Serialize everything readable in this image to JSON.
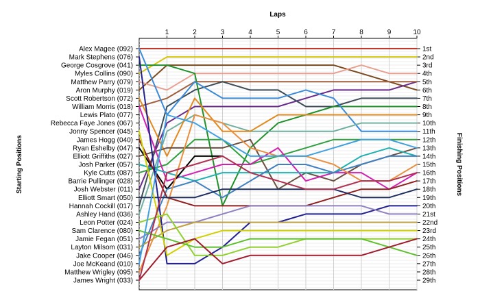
{
  "chart_data": {
    "type": "line",
    "title": "Laps",
    "ylabel_left": "Starting Positions",
    "ylabel_right": "Finishing Positions",
    "x": [
      0,
      1,
      2,
      3,
      4,
      5,
      6,
      7,
      8,
      9,
      10
    ],
    "x_tick_labels": [
      "1",
      "2",
      "3",
      "4",
      "5",
      "6",
      "7",
      "8",
      "9",
      "10"
    ],
    "xlim": [
      0,
      10
    ],
    "ylim": [
      1,
      29
    ],
    "y_inverted": true,
    "grid": {
      "vertical": true,
      "horizontal_minor": true
    },
    "left_labels": [
      "Alex Magee (092)",
      "Mark Stephens (076)",
      "George Cosgrove (041)",
      "Myles Collins (090)",
      "Matthew Parry (079)",
      "Aron Murphy (019)",
      "Scott Robertson (072)",
      "William Morris (018)",
      "Lewis Plato (077)",
      "Rebecca Faye Jones (067)",
      "Jonny Spencer (045)",
      "James Hogg (040)",
      "Ryan Eshelby (047)",
      "Elliott Griffiths (027)",
      "Josh Parker (057)",
      "Kyle Cutts (087)",
      "Barrie Pullinger (028)",
      "Josh Webster (011)",
      "Elliott Smart (050)",
      "Hannah Cockill (017)",
      "Ashley Hand (036)",
      "Leon Potter (024)",
      "Sam Clarence (080)",
      "Jamie Fegan (051)",
      "Layton Milsom (031)",
      "Jake Cooper (046)",
      "Joe McKeand (010)",
      "Matthew Wrigley (095)",
      "James Wright (033)"
    ],
    "right_labels": [
      "1st",
      "2nd",
      "3rd",
      "4th",
      "5th",
      "6th",
      "7th",
      "8th",
      "9th",
      "10th",
      "11th",
      "12th",
      "13th",
      "14th",
      "15th",
      "16th",
      "17th",
      "18th",
      "19th",
      "20th",
      "21st",
      "22nd",
      "23rd",
      "24th",
      "25th",
      "26th",
      "27th",
      "28th",
      "29th"
    ],
    "series": [
      {
        "color": "#c0392b",
        "values": [
          1,
          1,
          1,
          1,
          1,
          1,
          1,
          1,
          1,
          1,
          1
        ]
      },
      {
        "color": "#d4c60a",
        "values": [
          4,
          2,
          2,
          2,
          2,
          2,
          2,
          2,
          2,
          2,
          2
        ]
      },
      {
        "color": "#7a4a1e",
        "values": [
          6,
          3,
          3,
          3,
          3,
          3,
          3,
          3,
          4,
          5,
          6
        ]
      },
      {
        "color": "#e8a090",
        "values": [
          5,
          6,
          4,
          4,
          4,
          4,
          4,
          4,
          3,
          4,
          4
        ]
      },
      {
        "color": "#6a2a8a",
        "values": [
          18,
          10,
          8,
          8,
          8,
          8,
          7,
          6,
          6,
          6,
          5
        ]
      },
      {
        "color": "#a06040",
        "values": [
          8,
          7,
          5,
          5,
          5,
          5,
          5,
          5,
          5,
          5,
          5
        ]
      },
      {
        "color": "#3c4c58",
        "values": [
          20,
          8,
          6,
          5,
          6,
          6,
          8,
          8,
          7,
          7,
          7
        ]
      },
      {
        "color": "#20902a",
        "values": [
          3,
          3,
          4,
          20,
          13,
          10,
          9,
          8,
          8,
          8,
          8
        ]
      },
      {
        "color": "#3a8ad8",
        "values": [
          1,
          9,
          5,
          7,
          7,
          7,
          6,
          7,
          11,
          11,
          11
        ]
      },
      {
        "color": "#70b0a0",
        "values": [
          21,
          11,
          9,
          10,
          11,
          11,
          11,
          11,
          10,
          10,
          10
        ]
      },
      {
        "color": "#e08a20",
        "values": [
          7,
          14,
          7,
          11,
          11,
          9,
          9,
          9,
          9,
          9,
          9
        ]
      },
      {
        "color": "#30a040",
        "values": [
          16,
          15,
          12,
          12,
          15,
          14,
          13,
          12,
          12,
          12,
          12
        ]
      },
      {
        "color": "#6a5040",
        "values": [
          14,
          13,
          13,
          13,
          12,
          18,
          16,
          17,
          15,
          14,
          13
        ]
      },
      {
        "color": "#d020b0",
        "values": [
          8,
          17,
          16,
          15,
          15,
          13,
          17,
          16,
          16,
          18,
          16
        ]
      },
      {
        "color": "#20b0b0",
        "values": [
          15,
          16,
          17,
          16,
          16,
          16,
          16,
          16,
          14,
          13,
          14
        ]
      },
      {
        "color": "#000000",
        "values": [
          13,
          18,
          14,
          14,
          null,
          null,
          null,
          null,
          null,
          null,
          null
        ]
      },
      {
        "color": "#4080c0",
        "values": [
          26,
          18,
          17,
          19,
          17,
          15,
          15,
          16,
          15,
          14,
          14
        ]
      },
      {
        "color": "#e89040",
        "values": [
          28,
          20,
          9,
          10,
          13,
          14,
          14,
          15,
          17,
          17,
          15
        ]
      },
      {
        "color": "#902020",
        "values": [
          12,
          19,
          20,
          20,
          20,
          20,
          20,
          19,
          18,
          18,
          17
        ]
      },
      {
        "color": "#203060",
        "values": [
          19,
          19,
          19,
          18,
          18,
          18,
          18,
          18,
          19,
          19,
          18
        ]
      },
      {
        "color": "#202090",
        "values": [
          2,
          27,
          27,
          25,
          22,
          22,
          21,
          21,
          21,
          20,
          20
        ]
      },
      {
        "color": "#9080c0",
        "values": [
          24,
          22,
          22,
          21,
          20,
          20,
          20,
          20,
          20,
          21,
          21
        ]
      },
      {
        "color": "#c0a040",
        "values": [
          25,
          23,
          22,
          22,
          22,
          22,
          22,
          22,
          22,
          22,
          22
        ]
      },
      {
        "color": "#d0d000",
        "values": [
          11,
          26,
          24,
          23,
          23,
          23,
          23,
          23,
          23,
          23,
          23
        ]
      },
      {
        "color": "#90d030",
        "values": [
          22,
          21,
          26,
          26,
          25,
          25,
          24,
          24,
          24,
          24,
          24
        ]
      },
      {
        "color": "#60c030",
        "values": [
          23,
          24,
          25,
          25,
          24,
          24,
          24,
          24,
          24,
          25,
          26
        ]
      },
      {
        "color": "#a01c2c",
        "values": [
          29,
          25,
          24,
          27,
          26,
          26,
          26,
          26,
          26,
          25,
          24
        ]
      },
      {
        "color": "#40a0e0",
        "values": [
          27,
          9,
          10,
          12,
          14,
          14,
          14,
          13,
          12,
          12,
          13
        ]
      },
      {
        "color": "#b03050",
        "values": [
          29,
          16,
          15,
          14,
          16,
          17,
          18,
          18,
          17,
          17,
          16
        ]
      }
    ]
  }
}
